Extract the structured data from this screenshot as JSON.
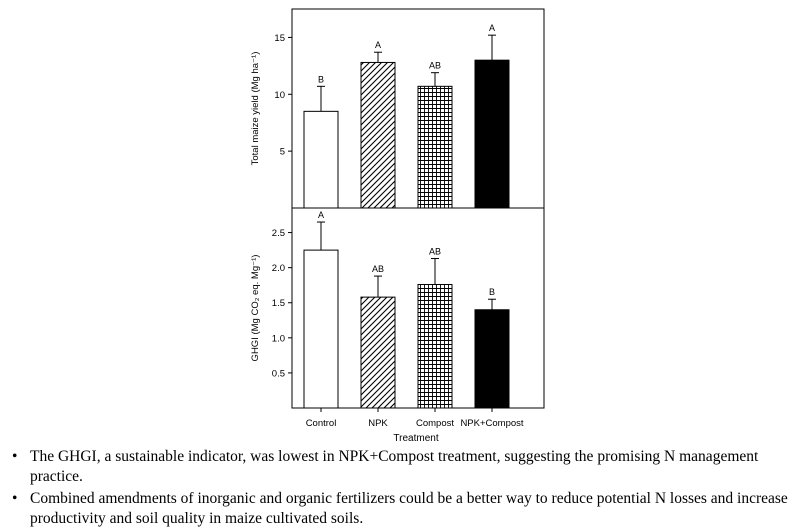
{
  "chart_data": [
    {
      "type": "bar",
      "categories": [
        "Control",
        "NPK",
        "Compost",
        "NPK+Compost"
      ],
      "values": [
        8.5,
        12.8,
        10.7,
        13.0
      ],
      "errors": [
        2.2,
        0.9,
        1.2,
        2.2
      ],
      "letters": [
        "B",
        "A",
        "AB",
        "A"
      ],
      "ylabel": "Total maize yield (Mg ha⁻¹)",
      "yticks": [
        "5",
        "10",
        "15"
      ],
      "ylim": [
        0,
        17.5
      ],
      "fills": [
        "open",
        "diagonal-hatch",
        "crosshatch",
        "solid"
      ]
    },
    {
      "type": "bar",
      "categories": [
        "Control",
        "NPK",
        "Compost",
        "NPK+Compost"
      ],
      "values": [
        2.25,
        1.58,
        1.76,
        1.4
      ],
      "errors": [
        0.4,
        0.3,
        0.37,
        0.15
      ],
      "letters": [
        "A",
        "AB",
        "AB",
        "B"
      ],
      "ylabel": "GHGI (Mg CO₂ eq. Mg⁻¹)",
      "yticks": [
        "0.5",
        "1.0",
        "1.5",
        "2.0",
        "2.5"
      ],
      "ylim": [
        0,
        2.85
      ],
      "xlabel": "Treatment",
      "fills": [
        "open",
        "diagonal-hatch",
        "crosshatch",
        "solid"
      ]
    }
  ],
  "bullets": [
    "The GHGI, a sustainable indicator, was lowest in NPK+Compost treatment, suggesting the promising N management practice.",
    "Combined amendments of inorganic and organic fertilizers could be a better way to reduce potential N losses and increase productivity and soil quality in maize cultivated soils."
  ],
  "bullet_symbol": "•"
}
